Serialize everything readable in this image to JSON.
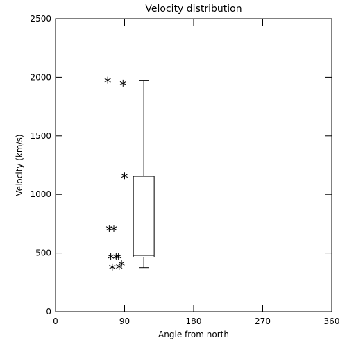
{
  "chart_data": {
    "type": "scatter-box",
    "title": "Velocity distribution",
    "x_label": "Angle from north",
    "y_label": "Velocity (km/s)",
    "xlim": [
      0,
      360
    ],
    "xticks": [
      0,
      90,
      180,
      270,
      360
    ],
    "ylim": [
      0,
      2500
    ],
    "yticks": [
      0,
      500,
      1000,
      1500,
      2000,
      2500
    ],
    "x": [
      68,
      88,
      90,
      70,
      76,
      72,
      79,
      82,
      74,
      83,
      86
    ],
    "values": [
      1975,
      1950,
      1160,
      710,
      710,
      470,
      470,
      470,
      380,
      385,
      410
    ],
    "color": "#000000",
    "box": {
      "x": 115,
      "min": 375,
      "q1": 465,
      "median": 480,
      "q3": 1155,
      "max": 1975
    }
  }
}
